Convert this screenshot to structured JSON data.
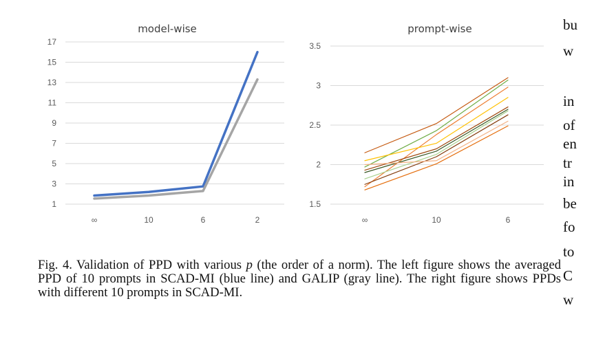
{
  "charts": {
    "left_title": "model-wise",
    "right_title": "prompt-wise",
    "left_categories": [
      "∞",
      "10",
      "6",
      "2"
    ],
    "right_categories": [
      "∞",
      "10",
      "6"
    ],
    "left_yticks": [
      "17",
      "15",
      "13",
      "11",
      "9",
      "7",
      "5",
      "3",
      "1"
    ],
    "right_yticks": [
      "3.5",
      "3",
      "2.5",
      "2",
      "1.5"
    ]
  },
  "chart_data": [
    {
      "type": "line",
      "title": "model-wise",
      "categories": [
        "∞",
        "10",
        "6",
        "2"
      ],
      "ylim": [
        1,
        17
      ],
      "grid": true,
      "series": [
        {
          "color": "#4472c4",
          "values": [
            1.85,
            2.2,
            2.75,
            16.0
          ]
        },
        {
          "color": "#a5a5a5",
          "values": [
            1.55,
            1.85,
            2.3,
            13.3
          ]
        }
      ]
    },
    {
      "type": "line",
      "title": "prompt-wise",
      "categories": [
        "∞",
        "10",
        "6"
      ],
      "ylim": [
        1.5,
        3.5
      ],
      "grid": true,
      "series": [
        {
          "color": "#c55a11",
          "values": [
            2.15,
            2.52,
            3.1
          ]
        },
        {
          "color": "#70ad47",
          "values": [
            1.97,
            2.43,
            3.07
          ]
        },
        {
          "color": "#ed7d31",
          "values": [
            1.72,
            2.38,
            2.98
          ]
        },
        {
          "color": "#ffc000",
          "values": [
            2.05,
            2.27,
            2.85
          ]
        },
        {
          "color": "#9e480e",
          "values": [
            1.93,
            2.2,
            2.73
          ]
        },
        {
          "color": "#375623",
          "values": [
            1.9,
            2.17,
            2.7
          ]
        },
        {
          "color": "#a9d18e",
          "values": [
            1.82,
            2.13,
            2.68
          ]
        },
        {
          "color": "#843c0c",
          "values": [
            1.75,
            2.1,
            2.63
          ]
        },
        {
          "color": "#f4b183",
          "values": [
            2.0,
            2.05,
            2.55
          ]
        },
        {
          "color": "#e46c0a",
          "values": [
            1.68,
            2.01,
            2.49
          ]
        }
      ]
    }
  ],
  "caption": {
    "label": "Fig. 4.",
    "part1": "Validation of PPD with various ",
    "var": "p",
    "part2": " (the order of a norm). The left figure shows the averaged PPD of 10 prompts in SCAD-MI (blue line) and GALIP (gray line). The right figure shows PPDs with different 10 prompts in SCAD-MI."
  },
  "side_text": [
    "bu",
    "w",
    "in",
    "of",
    "en",
    "tr",
    "in",
    "be",
    "fo",
    "to",
    "C",
    "w"
  ]
}
